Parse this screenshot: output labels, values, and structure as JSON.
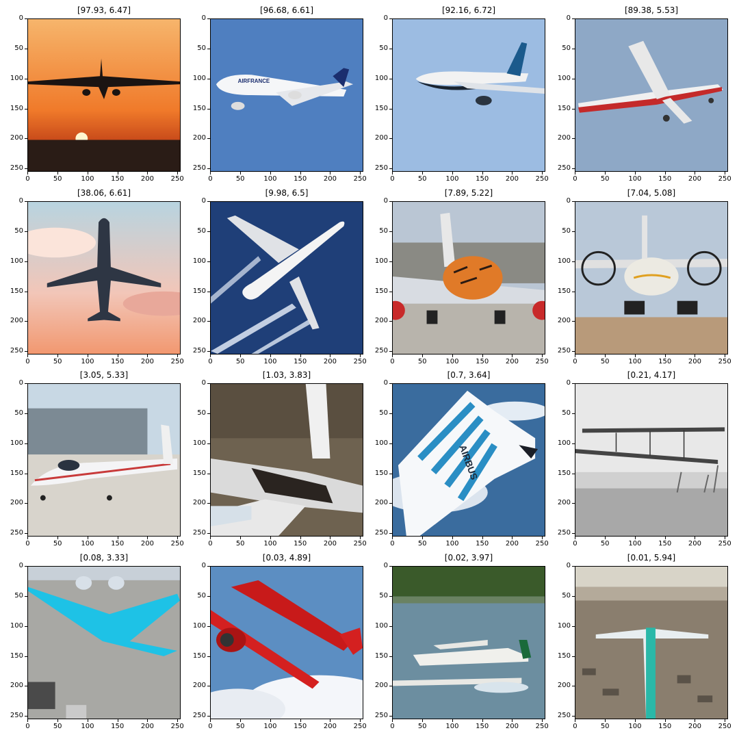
{
  "figure": {
    "axis_ticks": {
      "x": [
        "0",
        "50",
        "100",
        "150",
        "200",
        "250"
      ],
      "y": [
        "0",
        "50",
        "100",
        "150",
        "200",
        "250"
      ]
    },
    "panels": [
      {
        "title": "[97.93, 6.47]",
        "scene": "sunset-landing-airliner"
      },
      {
        "title": "[96.68, 6.61]",
        "scene": "air-france-a380"
      },
      {
        "title": "[92.16, 6.72]",
        "scene": "boeing-737-max-blue-sky"
      },
      {
        "title": "[89.38, 5.53]",
        "scene": "cessna-caravan-turboprop"
      },
      {
        "title": "[38.06, 6.61]",
        "scene": "airliner-silhouette-pink-clouds"
      },
      {
        "title": "[9.98, 6.5]",
        "scene": "a380-from-above-contrails"
      },
      {
        "title": "[7.89, 5.22]",
        "scene": "tiger-livery-747-on-ground"
      },
      {
        "title": "[7.04, 5.08]",
        "scene": "an-22-propeller-cargo"
      },
      {
        "title": "[3.05, 5.33]",
        "scene": "nasa-light-aircraft-hangar"
      },
      {
        "title": "[1.03, 3.83]",
        "scene": "burned-wreck-fuselage"
      },
      {
        "title": "[0.7, 3.64]",
        "scene": "airbus-blended-wing-concept"
      },
      {
        "title": "[0.21, 4.17]",
        "scene": "wright-flyer-black-white"
      },
      {
        "title": "[0.08, 3.33]",
        "scene": "klm-flying-v-concept"
      },
      {
        "title": "[0.03, 4.89]",
        "scene": "red-biplane-clouds"
      },
      {
        "title": "[0.02, 3.97]",
        "scene": "floatplane-on-lake"
      },
      {
        "title": "[0.01, 5.94]",
        "scene": "boeing-factory-floor"
      }
    ],
    "colors": {
      "axis": "#000000",
      "background": "#ffffff"
    }
  }
}
